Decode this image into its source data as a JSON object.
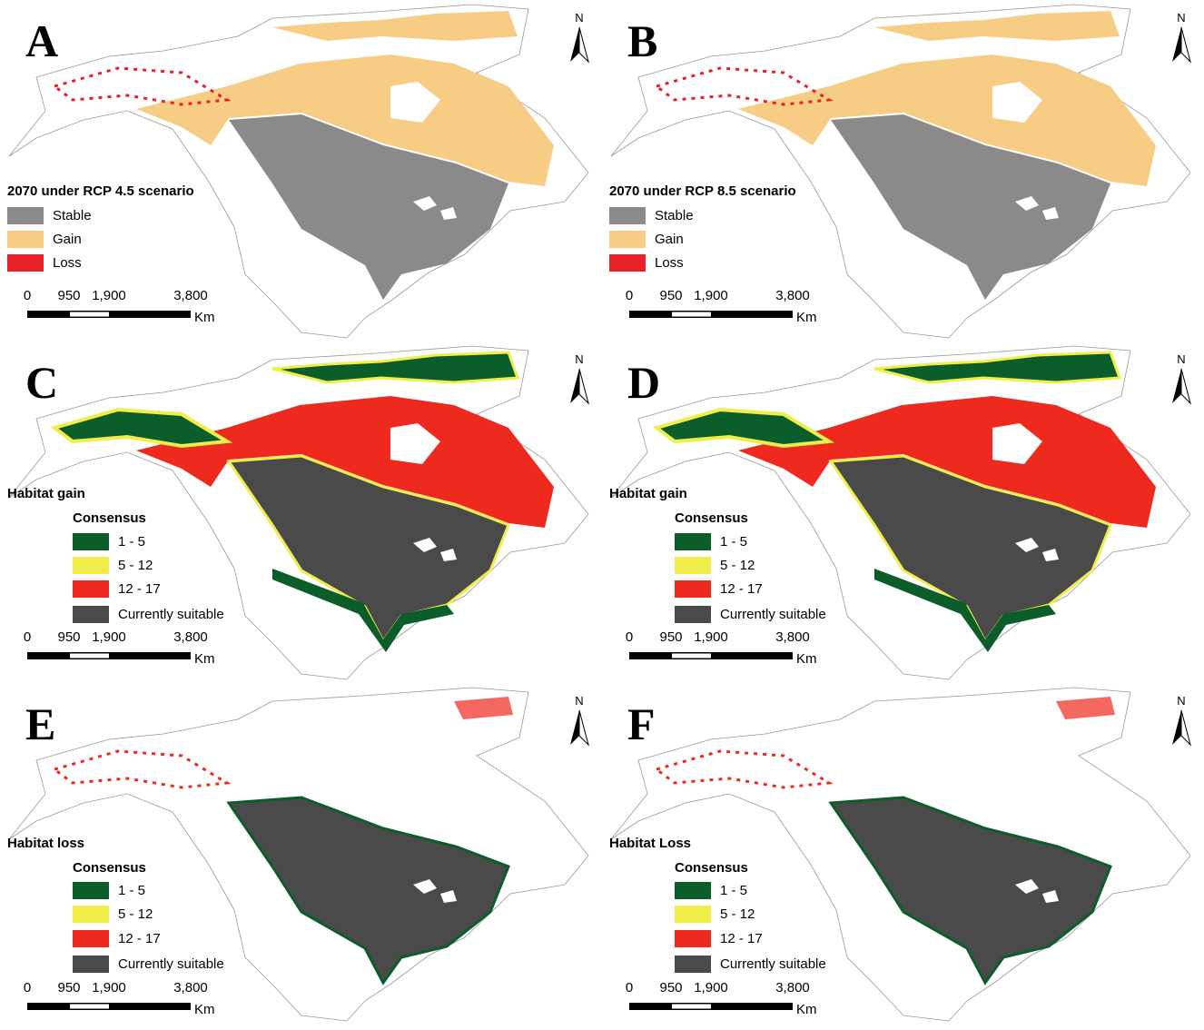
{
  "panels": [
    {
      "letter": "A",
      "north": "N",
      "legend": {
        "title": "2070 under RCP 4.5  scenario",
        "items": [
          {
            "label": "Stable",
            "color": "#8a8a8a"
          },
          {
            "label": "Gain",
            "color": "#f7cd86"
          },
          {
            "label": "Loss",
            "color": "#e8202a"
          }
        ]
      },
      "scale": {
        "ticks": [
          "0",
          "950",
          "1,900",
          "3,800"
        ],
        "unit": "Km"
      }
    },
    {
      "letter": "B",
      "north": "N",
      "legend": {
        "title": "2070 under RCP 8.5  scenario",
        "items": [
          {
            "label": "Stable",
            "color": "#8a8a8a"
          },
          {
            "label": "Gain",
            "color": "#f7cd86"
          },
          {
            "label": "Loss",
            "color": "#e8202a"
          }
        ]
      },
      "scale": {
        "ticks": [
          "0",
          "950",
          "1,900",
          "3,800"
        ],
        "unit": "Km"
      }
    },
    {
      "letter": "C",
      "north": "N",
      "legend": {
        "title": "Habitat gain",
        "subtitle": "Consensus",
        "items": [
          {
            "label": "1 - 5",
            "color": "#0b5e2a"
          },
          {
            "label": "5 - 12",
            "color": "#f1ee4c"
          },
          {
            "label": "12 - 17",
            "color": "#ee2a1f"
          },
          {
            "label": "Currently suitable",
            "color": "#4a4a4a"
          }
        ]
      },
      "scale": {
        "ticks": [
          "0",
          "950",
          "1,900",
          "3,800"
        ],
        "unit": "Km"
      }
    },
    {
      "letter": "D",
      "north": "N",
      "legend": {
        "title": "Habitat gain",
        "subtitle": "Consensus",
        "items": [
          {
            "label": "1 - 5",
            "color": "#0b5e2a"
          },
          {
            "label": "5 - 12",
            "color": "#f1ee4c"
          },
          {
            "label": "12 - 17",
            "color": "#ee2a1f"
          },
          {
            "label": "Currently suitable",
            "color": "#4a4a4a"
          }
        ]
      },
      "scale": {
        "ticks": [
          "0",
          "950",
          "1,900",
          "3,800"
        ],
        "unit": "Km"
      }
    },
    {
      "letter": "E",
      "north": "N",
      "legend": {
        "title": "Habitat loss",
        "subtitle": "Consensus",
        "items": [
          {
            "label": "1 - 5",
            "color": "#0b5e2a"
          },
          {
            "label": "5 - 12",
            "color": "#f1ee4c"
          },
          {
            "label": "12 - 17",
            "color": "#ee2a1f"
          },
          {
            "label": "Currently suitable",
            "color": "#4a4a4a"
          }
        ]
      },
      "scale": {
        "ticks": [
          "0",
          "950",
          "1,900",
          "3,800"
        ],
        "unit": "Km"
      }
    },
    {
      "letter": "F",
      "north": "N",
      "legend": {
        "title": "Habitat Loss",
        "subtitle": "Consensus",
        "items": [
          {
            "label": "1 - 5",
            "color": "#0b5e2a"
          },
          {
            "label": "5 - 12",
            "color": "#f1ee4c"
          },
          {
            "label": "12 - 17",
            "color": "#ee2a1f"
          },
          {
            "label": "Currently suitable",
            "color": "#4a4a4a"
          }
        ]
      },
      "scale": {
        "ticks": [
          "0",
          "950",
          "1,900",
          "3,800"
        ],
        "unit": "Km"
      }
    }
  ]
}
